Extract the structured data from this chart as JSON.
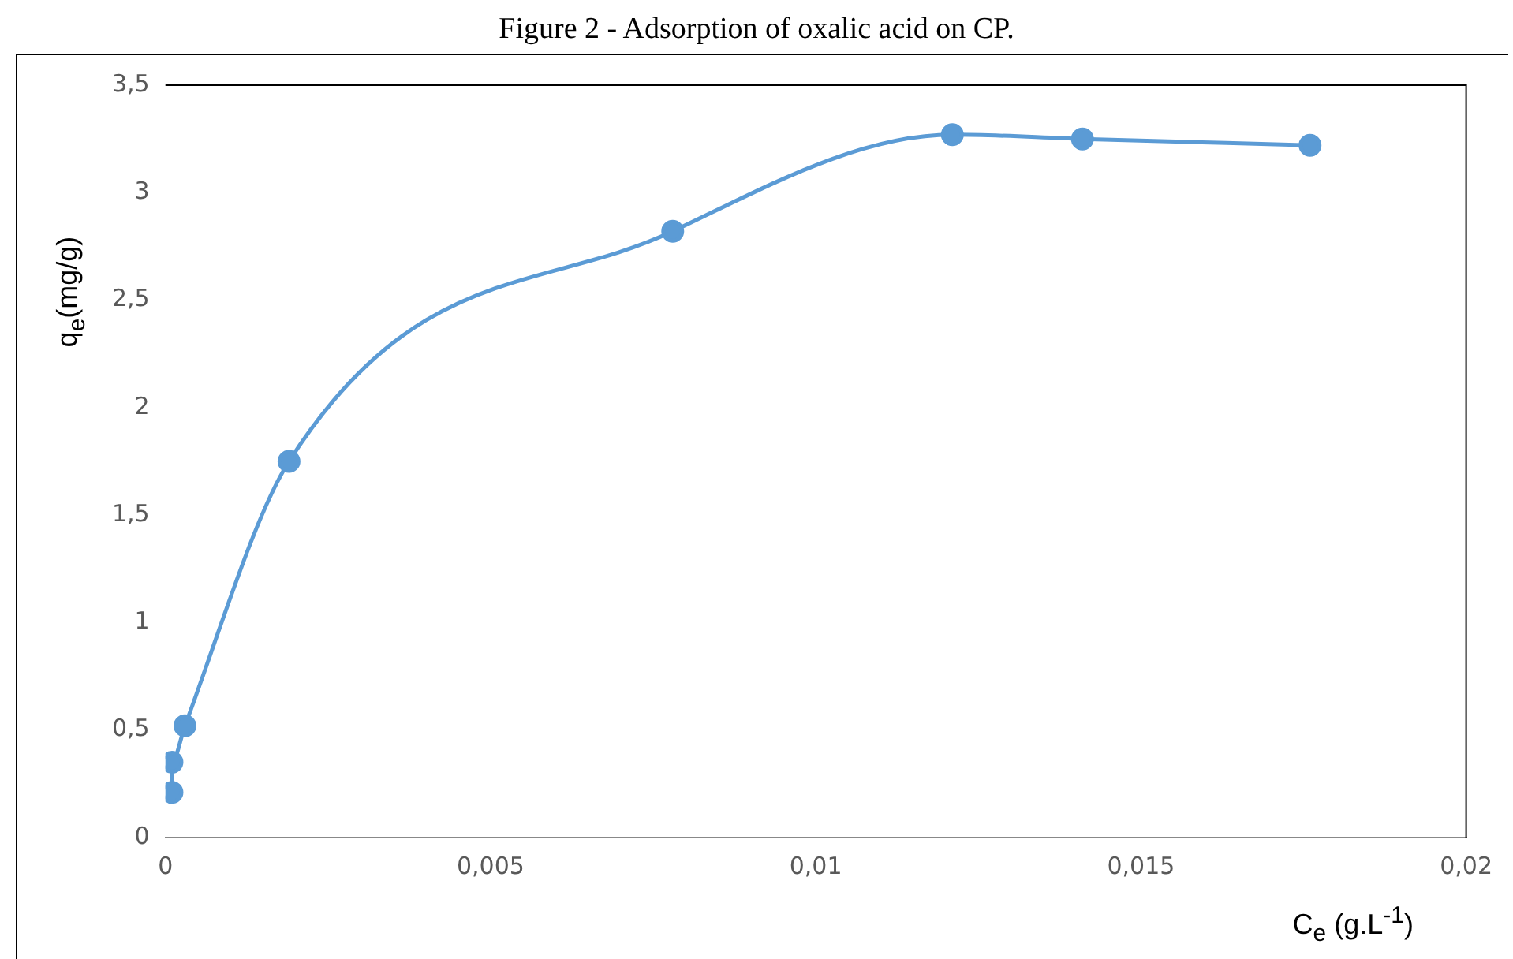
{
  "chart_data": {
    "type": "line",
    "title": "Figure 2 - Adsorption of oxalic acid on CP.",
    "xlabel": "C$_{e}$ (g.L$^{-1}$)",
    "ylabel": "q$_{e}$(mg/g)",
    "series": [
      {
        "color": "#5b9bd5",
        "x": [
          0.0001,
          0.0001,
          0.0003,
          0.0019,
          0.0078,
          0.0121,
          0.0141,
          0.0176
        ],
        "values": [
          0.21,
          0.35,
          0.52,
          1.75,
          2.82,
          3.27,
          3.25,
          3.22
        ]
      }
    ],
    "xlim": [
      0,
      0.02
    ],
    "xticks": [
      0,
      {
        "value": 0.005,
        "label": "0,005"
      },
      {
        "value": 0.01,
        "label": "0,01"
      },
      {
        "value": 0.015,
        "label": "0,015"
      },
      {
        "value": 0.02,
        "label": "0,02"
      }
    ],
    "ylim": [
      0,
      3.5
    ],
    "yticks": [
      0,
      {
        "value": 0.5,
        "label": "0,5"
      },
      1,
      {
        "value": 1.5,
        "label": "1,5"
      },
      2,
      {
        "value": 2.5,
        "label": "2,5"
      },
      3,
      {
        "value": 3.5,
        "label": "3,5"
      }
    ],
    "grid": false,
    "legend": false,
    "marker": "circle",
    "line_style": "solid"
  }
}
